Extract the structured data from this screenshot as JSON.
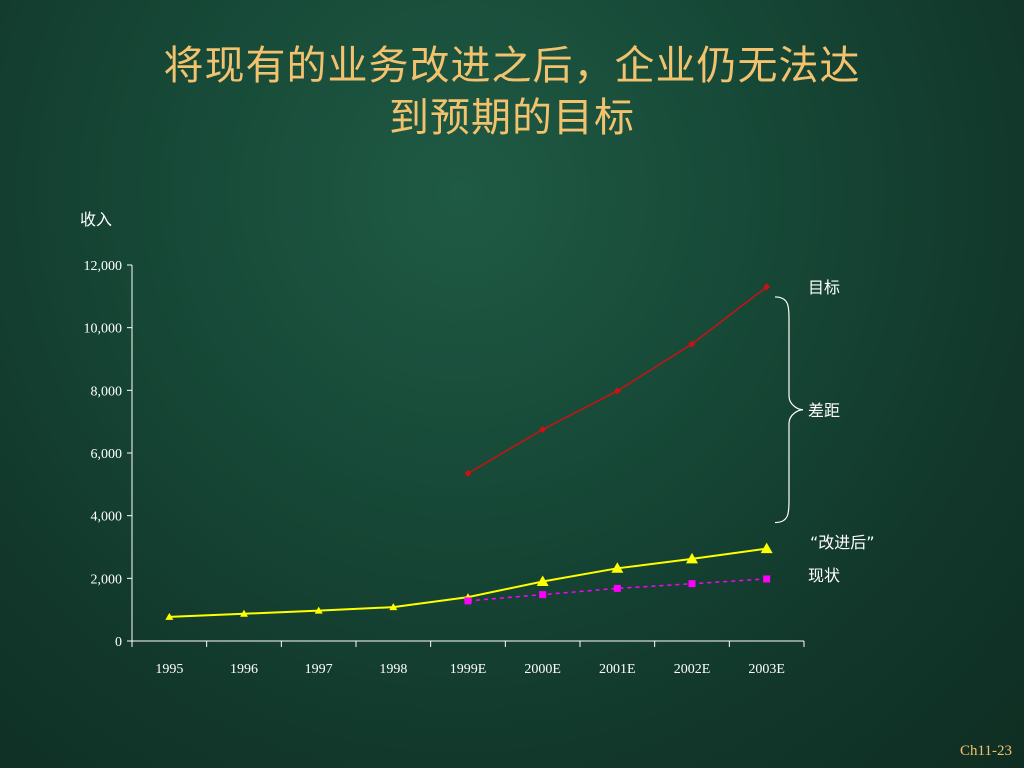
{
  "slide": {
    "title_line1": "将现有的业务改进之后，企业仍无法达",
    "title_line2": "到预期的目标",
    "page_number": "Ch11-23"
  },
  "chart_data": {
    "type": "line",
    "ylabel": "收入",
    "ylim": [
      0,
      12000
    ],
    "y_ticks": [
      0,
      2000,
      4000,
      6000,
      8000,
      10000,
      12000
    ],
    "y_tick_labels": [
      "0",
      "2,000",
      "4,000",
      "6,000",
      "8,000",
      "10,000",
      "12,000"
    ],
    "categories": [
      "1995",
      "1996",
      "1997",
      "1998",
      "1999E",
      "2000E",
      "2001E",
      "2002E",
      "2003E"
    ],
    "series": [
      {
        "name": "目标",
        "color": "#cc1111",
        "marker": "diamond",
        "dash": false,
        "values": [
          null,
          null,
          null,
          null,
          5350,
          6750,
          7980,
          9480,
          11300
        ]
      },
      {
        "name": "“改进后”",
        "color": "#ffff00",
        "marker": "triangle",
        "dash": false,
        "values": [
          770,
          870,
          970,
          1080,
          1400,
          1900,
          2320,
          2620,
          2950
        ]
      },
      {
        "name": "现状",
        "color": "#ff00ff",
        "marker": "square",
        "dash": true,
        "values": [
          null,
          null,
          null,
          null,
          1280,
          1480,
          1680,
          1830,
          1980
        ]
      }
    ],
    "annotation": "差距",
    "grid": false
  }
}
